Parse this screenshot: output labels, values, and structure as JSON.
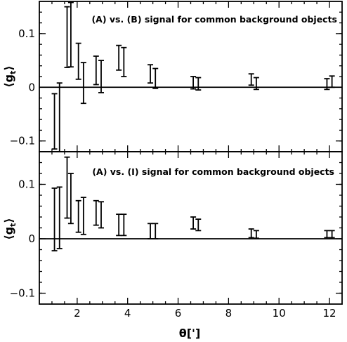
{
  "chart_data": [
    {
      "type": "errorbar",
      "annotation": "(A) vs. (B) signal for common background objects",
      "ylabel": "⟨g_t⟩",
      "ylim": [
        -0.12,
        0.16
      ],
      "xlim": [
        0.5,
        12.5
      ],
      "yticks": [
        -0.1,
        0,
        0.1
      ],
      "ytick_labels": [
        "−0.1",
        "0",
        "0.1"
      ],
      "zero_line": true,
      "series": [
        {
          "x": [
            1.1,
            1.3,
            1.6,
            1.75,
            2.05,
            2.25,
            2.75,
            2.95,
            3.65,
            3.85,
            4.9,
            5.1,
            6.6,
            6.8,
            8.9,
            9.1,
            11.9,
            12.1
          ],
          "low": [
            -0.115,
            -0.12,
            0.037,
            0.038,
            0.015,
            -0.03,
            0.005,
            -0.01,
            0.032,
            0.02,
            0.008,
            -0.002,
            -0.003,
            -0.005,
            0.004,
            -0.004,
            -0.004,
            0.0
          ],
          "high": [
            -0.012,
            0.008,
            0.15,
            0.158,
            0.082,
            0.046,
            0.058,
            0.05,
            0.078,
            0.074,
            0.042,
            0.035,
            0.02,
            0.018,
            0.025,
            0.018,
            0.016,
            0.021
          ]
        }
      ]
    },
    {
      "type": "errorbar",
      "annotation": "(A) vs. (I) signal for common background objects",
      "ylabel": "⟨g_t⟩",
      "xlabel": "θ[']",
      "ylim": [
        -0.12,
        0.16
      ],
      "xlim": [
        0.5,
        12.5
      ],
      "yticks": [
        -0.1,
        0,
        0.1
      ],
      "ytick_labels": [
        "−0.1",
        "0",
        "0.1"
      ],
      "xticks": [
        2,
        4,
        6,
        8,
        10,
        12
      ],
      "xtick_labels": [
        "2",
        "4",
        "6",
        "8",
        "10",
        "12"
      ],
      "zero_line": true,
      "series": [
        {
          "x": [
            1.1,
            1.3,
            1.6,
            1.75,
            2.05,
            2.25,
            2.75,
            2.95,
            3.65,
            3.85,
            4.9,
            5.1,
            6.6,
            6.8,
            8.9,
            9.1,
            11.9,
            12.1
          ],
          "low": [
            -0.022,
            -0.018,
            0.038,
            0.028,
            0.012,
            0.008,
            0.025,
            0.02,
            0.006,
            0.006,
            0.0,
            0.0,
            0.018,
            0.015,
            0.002,
            0.001,
            0.002,
            0.002
          ],
          "high": [
            0.093,
            0.095,
            0.15,
            0.12,
            0.07,
            0.076,
            0.07,
            0.068,
            0.045,
            0.045,
            0.028,
            0.028,
            0.04,
            0.036,
            0.018,
            0.015,
            0.015,
            0.015
          ]
        }
      ]
    }
  ]
}
